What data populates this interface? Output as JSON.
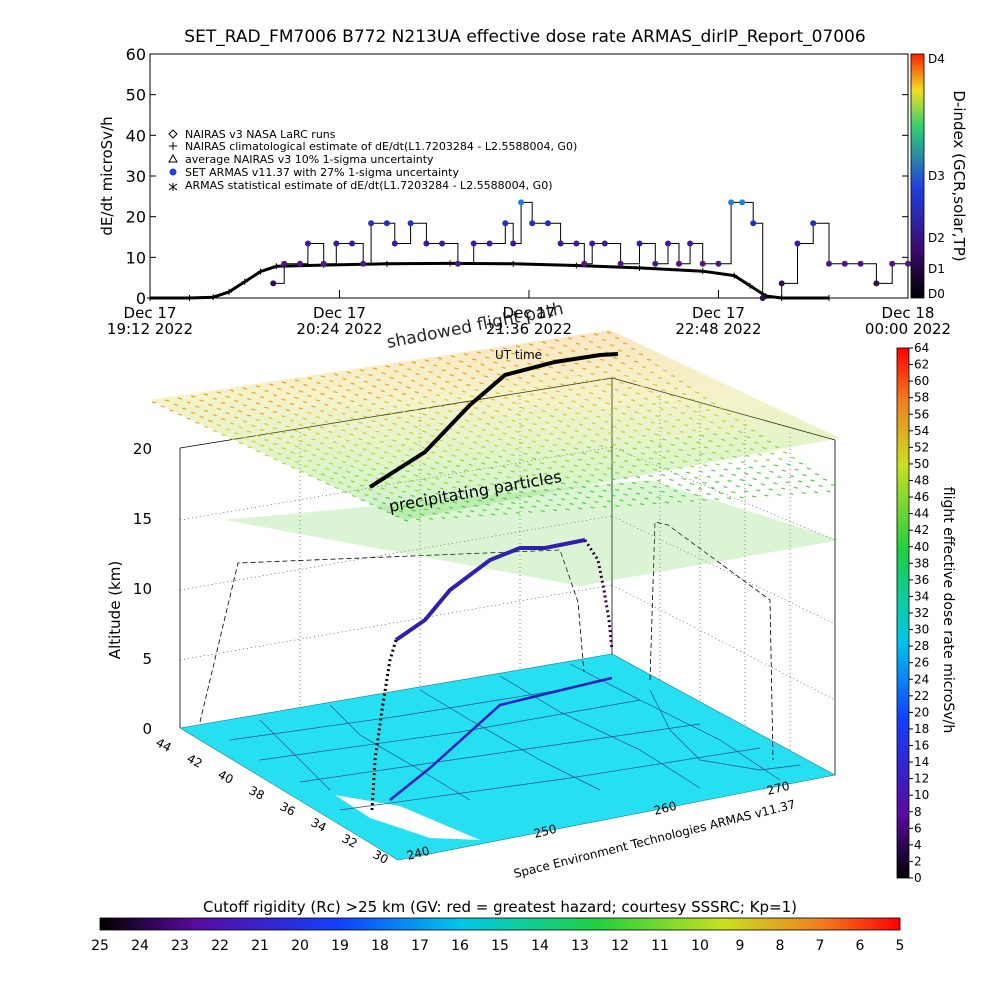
{
  "title": "SET_RAD_FM7006   B772 N213UA effective dose rate ARMAS_dirIP_Report_07006",
  "chart_data": [
    {
      "type": "scatter",
      "ylabel": "dE/dt microSv/h",
      "ylim": [
        0,
        60
      ],
      "yticks": [
        0,
        10,
        20,
        30,
        40,
        50,
        60
      ],
      "x_ticks": [
        {
          "line1": "Dec 17",
          "line2": "19:12 2022"
        },
        {
          "line1": "Dec 17",
          "line2": "20:24 2022"
        },
        {
          "line1": "Dec 17",
          "line2": "21:36 2022"
        },
        {
          "line1": "Dec 17",
          "line2": "22:48 2022"
        },
        {
          "line1": "Dec 18",
          "line2": "00:00 2022"
        }
      ],
      "xlabel": "UT time",
      "xlim_hours": [
        19.2,
        24.0
      ],
      "legend": [
        {
          "marker": "diamond",
          "text": "NAIRAS v3 NASA LaRC runs"
        },
        {
          "marker": "plus",
          "text": "NAIRAS climatological estimate of dE/dt(L1.7203284 - L2.5588004, G0)"
        },
        {
          "marker": "triangle",
          "text": "average NAIRAS v3 10% 1-sigma uncertainty"
        },
        {
          "marker": "dot",
          "text": "SET ARMAS v11.37 with 27% 1-sigma uncertainty"
        },
        {
          "marker": "star",
          "text": "ARMAS statistical estimate of dE/dt(L1.7203284 - L2.5588004, G0)"
        }
      ],
      "series": [
        {
          "name": "NAIRAS climatological estimate",
          "color": "#000000",
          "points": [
            [
              19.2,
              0
            ],
            [
              19.45,
              0
            ],
            [
              19.6,
              0.2
            ],
            [
              19.7,
              1.5
            ],
            [
              19.8,
              4
            ],
            [
              19.9,
              6.5
            ],
            [
              20.0,
              7.8
            ],
            [
              20.3,
              8.1
            ],
            [
              20.7,
              8.4
            ],
            [
              21.1,
              8.5
            ],
            [
              21.5,
              8.4
            ],
            [
              21.9,
              8.0
            ],
            [
              22.3,
              7.4
            ],
            [
              22.7,
              6.6
            ],
            [
              22.9,
              5.5
            ],
            [
              23.0,
              3.0
            ],
            [
              23.1,
              0.5
            ],
            [
              23.2,
              0
            ],
            [
              23.5,
              0
            ]
          ]
        },
        {
          "name": "SET ARMAS v11.37",
          "color_scale": "D-index",
          "points": [
            [
              19.98,
              3.6
            ],
            [
              20.05,
              8.4
            ],
            [
              20.15,
              8.4
            ],
            [
              20.2,
              13.4
            ],
            [
              20.3,
              8.4
            ],
            [
              20.38,
              13.4
            ],
            [
              20.48,
              13.4
            ],
            [
              20.55,
              8.4
            ],
            [
              20.6,
              18.4
            ],
            [
              20.7,
              18.4
            ],
            [
              20.75,
              13.4
            ],
            [
              20.85,
              18.4
            ],
            [
              20.95,
              13.4
            ],
            [
              21.05,
              13.4
            ],
            [
              21.15,
              8.4
            ],
            [
              21.25,
              13.4
            ],
            [
              21.35,
              13.4
            ],
            [
              21.45,
              18.4
            ],
            [
              21.5,
              13.4
            ],
            [
              21.55,
              23.5
            ],
            [
              21.62,
              18.4
            ],
            [
              21.72,
              18.4
            ],
            [
              21.8,
              13.4
            ],
            [
              21.9,
              13.4
            ],
            [
              21.95,
              8.4
            ],
            [
              22.0,
              13.4
            ],
            [
              22.08,
              13.4
            ],
            [
              22.18,
              8.4
            ],
            [
              22.3,
              13.4
            ],
            [
              22.4,
              8.4
            ],
            [
              22.48,
              13.4
            ],
            [
              22.55,
              8.4
            ],
            [
              22.62,
              13.4
            ],
            [
              22.7,
              8.4
            ],
            [
              22.8,
              8.4
            ],
            [
              22.88,
              23.5
            ],
            [
              22.95,
              23.5
            ],
            [
              23.02,
              18.4
            ],
            [
              23.08,
              0
            ],
            [
              23.2,
              3.6
            ],
            [
              23.3,
              13.4
            ],
            [
              23.4,
              18.4
            ],
            [
              23.5,
              8.4
            ],
            [
              23.6,
              8.4
            ],
            [
              23.7,
              8.4
            ],
            [
              23.8,
              3.6
            ],
            [
              23.9,
              8.4
            ],
            [
              24.0,
              8.4
            ],
            [
              24.08,
              6.8
            ]
          ]
        }
      ],
      "color_scale": {
        "name": "D-index (GCR,solar,TP)",
        "labels": [
          "D0",
          "D1",
          "D2",
          "D3",
          "D4"
        ]
      }
    },
    {
      "type": "scatter",
      "zlabel": "Altitude (km)",
      "zticks": [
        0,
        5,
        10,
        15,
        20
      ],
      "lat_ticks": [
        44,
        42,
        40,
        38,
        36,
        34,
        32,
        30
      ],
      "lon_ticks": [
        240,
        250,
        260,
        270
      ],
      "annotations": [
        "shadowed flight path",
        "precipitating particles",
        "UT time"
      ],
      "credit": "Space Environment Technologies ARMAS v11.37",
      "dose_colorbar": {
        "label": "flight effective dose rate microSv/h",
        "ticks": [
          0,
          2,
          4,
          6,
          8,
          10,
          12,
          14,
          16,
          18,
          20,
          22,
          24,
          26,
          28,
          30,
          32,
          34,
          36,
          38,
          40,
          42,
          44,
          46,
          48,
          50,
          52,
          54,
          56,
          58,
          60,
          62,
          64
        ]
      }
    }
  ],
  "cutoff_rigidity": {
    "label": "Cutoff rigidity (Rc) >25 km (GV: red = greatest hazard; courtesy SSSRC; Kp=1)",
    "ticks": [
      25,
      24,
      23,
      22,
      21,
      20,
      19,
      18,
      17,
      16,
      15,
      14,
      13,
      12,
      11,
      10,
      9,
      8,
      7,
      6,
      5
    ]
  }
}
